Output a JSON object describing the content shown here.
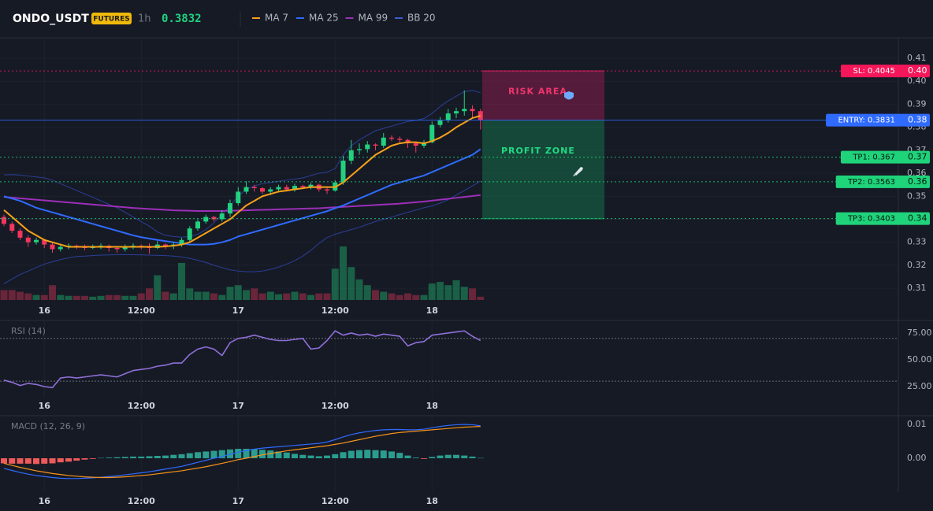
{
  "header": {
    "symbol": "ONDO_USDT",
    "badge": "FUTURES",
    "interval": "1h",
    "price": 0.3832
  },
  "chart_data": [
    {
      "type": "candlestick",
      "up_color": "#22d17f",
      "down_color": "#f2365e",
      "grid": true,
      "ylim": [
        0.3049,
        0.4189
      ],
      "yticks": [
        0.31,
        0.32,
        0.33,
        0.34,
        0.35,
        0.36,
        0.37,
        0.38,
        0.39,
        {
          "value": 0.4,
          "label": "0.40"
        },
        0.41
      ],
      "xticks": [
        {
          "value": 5,
          "label": "16"
        },
        {
          "value": 17,
          "label": "12:00"
        },
        {
          "value": 29,
          "label": "17"
        },
        {
          "value": 41,
          "label": "12:00"
        },
        {
          "value": 53,
          "label": "18"
        }
      ],
      "ohlc": [
        [
          0.341,
          0.342,
          0.337,
          0.338
        ],
        [
          0.338,
          0.339,
          0.334,
          0.335
        ],
        [
          0.335,
          0.336,
          0.331,
          0.332
        ],
        [
          0.332,
          0.333,
          0.328,
          0.33
        ],
        [
          0.33,
          0.332,
          0.329,
          0.331
        ],
        [
          0.331,
          0.3315,
          0.3275,
          0.329
        ],
        [
          0.329,
          0.33,
          0.3255,
          0.327
        ],
        [
          0.327,
          0.329,
          0.326,
          0.328
        ],
        [
          0.328,
          0.3295,
          0.327,
          0.3285
        ],
        [
          0.3285,
          0.329,
          0.327,
          0.328
        ],
        [
          0.328,
          0.329,
          0.3265,
          0.3275
        ],
        [
          0.3275,
          0.329,
          0.327,
          0.328
        ],
        [
          0.328,
          0.3295,
          0.327,
          0.3285
        ],
        [
          0.3285,
          0.329,
          0.326,
          0.3275
        ],
        [
          0.3275,
          0.328,
          0.3255,
          0.327
        ],
        [
          0.327,
          0.329,
          0.326,
          0.328
        ],
        [
          0.328,
          0.3295,
          0.327,
          0.3285
        ],
        [
          0.3285,
          0.329,
          0.327,
          0.328
        ],
        [
          0.328,
          0.3295,
          0.325,
          0.3275
        ],
        [
          0.3275,
          0.3305,
          0.327,
          0.329
        ],
        [
          0.329,
          0.3295,
          0.327,
          0.3285
        ],
        [
          0.3285,
          0.33,
          0.327,
          0.329
        ],
        [
          0.329,
          0.332,
          0.328,
          0.331
        ],
        [
          0.331,
          0.337,
          0.33,
          0.336
        ],
        [
          0.336,
          0.34,
          0.335,
          0.339
        ],
        [
          0.339,
          0.342,
          0.338,
          0.341
        ],
        [
          0.341,
          0.3415,
          0.339,
          0.34
        ],
        [
          0.34,
          0.344,
          0.339,
          0.3425
        ],
        [
          0.3425,
          0.3485,
          0.341,
          0.347
        ],
        [
          0.347,
          0.354,
          0.346,
          0.352
        ],
        [
          0.352,
          0.3565,
          0.351,
          0.354
        ],
        [
          0.354,
          0.355,
          0.352,
          0.3535
        ],
        [
          0.3535,
          0.354,
          0.351,
          0.352
        ],
        [
          0.352,
          0.354,
          0.3505,
          0.353
        ],
        [
          0.353,
          0.355,
          0.352,
          0.354
        ],
        [
          0.354,
          0.355,
          0.352,
          0.353
        ],
        [
          0.353,
          0.3555,
          0.352,
          0.3545
        ],
        [
          0.3545,
          0.355,
          0.353,
          0.354
        ],
        [
          0.354,
          0.356,
          0.353,
          0.355
        ],
        [
          0.355,
          0.3555,
          0.352,
          0.353
        ],
        [
          0.353,
          0.354,
          0.351,
          0.3525
        ],
        [
          0.3525,
          0.357,
          0.352,
          0.356
        ],
        [
          0.356,
          0.3675,
          0.355,
          0.3655
        ],
        [
          0.3655,
          0.3745,
          0.364,
          0.37
        ],
        [
          0.37,
          0.373,
          0.368,
          0.3705
        ],
        [
          0.3705,
          0.374,
          0.369,
          0.3725
        ],
        [
          0.3725,
          0.373,
          0.37,
          0.372
        ],
        [
          0.372,
          0.3775,
          0.371,
          0.3755
        ],
        [
          0.3755,
          0.3765,
          0.374,
          0.375
        ],
        [
          0.375,
          0.376,
          0.373,
          0.3745
        ],
        [
          0.3745,
          0.375,
          0.371,
          0.373
        ],
        [
          0.373,
          0.3735,
          0.369,
          0.372
        ],
        [
          0.372,
          0.3745,
          0.371,
          0.3735
        ],
        [
          0.3735,
          0.3825,
          0.373,
          0.381
        ],
        [
          0.381,
          0.3845,
          0.38,
          0.383
        ],
        [
          0.383,
          0.388,
          0.382,
          0.386
        ],
        [
          0.386,
          0.3885,
          0.384,
          0.387
        ],
        [
          0.387,
          0.396,
          0.385,
          0.388
        ],
        [
          0.388,
          0.3895,
          0.384,
          0.387
        ],
        [
          0.387,
          0.388,
          0.379,
          0.3832
        ]
      ],
      "volume": [
        12,
        12,
        10,
        8,
        6,
        6,
        18,
        6,
        5,
        5,
        5,
        4,
        5,
        6,
        6,
        5,
        5,
        8,
        14,
        30,
        10,
        8,
        45,
        14,
        10,
        10,
        8,
        6,
        16,
        18,
        12,
        14,
        8,
        10,
        7,
        8,
        10,
        8,
        6,
        8,
        8,
        38,
        65,
        40,
        25,
        18,
        12,
        10,
        8,
        6,
        8,
        6,
        6,
        20,
        22,
        18,
        24,
        16,
        14,
        4
      ],
      "series": [
        {
          "name": "MA 7",
          "color": "#f7a11a",
          "values": [
            0.344,
            0.341,
            0.338,
            0.335,
            0.333,
            0.331,
            0.33,
            0.329,
            0.328,
            0.328,
            0.328,
            0.328,
            0.328,
            0.328,
            0.328,
            0.328,
            0.328,
            0.328,
            0.328,
            0.328,
            0.3282,
            0.3285,
            0.329,
            0.33,
            0.332,
            0.334,
            0.336,
            0.338,
            0.34,
            0.343,
            0.346,
            0.348,
            0.35,
            0.351,
            0.352,
            0.3525,
            0.353,
            0.3535,
            0.354,
            0.354,
            0.354,
            0.354,
            0.356,
            0.359,
            0.362,
            0.365,
            0.368,
            0.37,
            0.372,
            0.373,
            0.3735,
            0.3735,
            0.373,
            0.374,
            0.3755,
            0.3775,
            0.38,
            0.382,
            0.384,
            0.385
          ]
        },
        {
          "name": "MA 25",
          "color": "#2f6bff",
          "values": [
            0.35,
            0.349,
            0.348,
            0.3465,
            0.345,
            0.344,
            0.343,
            0.342,
            0.341,
            0.34,
            0.339,
            0.338,
            0.337,
            0.336,
            0.335,
            0.334,
            0.333,
            0.3322,
            0.3316,
            0.331,
            0.3305,
            0.33,
            0.3295,
            0.329,
            0.329,
            0.329,
            0.3293,
            0.33,
            0.331,
            0.3325,
            0.3335,
            0.3345,
            0.3355,
            0.3365,
            0.3375,
            0.3385,
            0.3395,
            0.3405,
            0.3415,
            0.3425,
            0.3435,
            0.3448,
            0.346,
            0.3475,
            0.349,
            0.3505,
            0.352,
            0.3535,
            0.355,
            0.356,
            0.357,
            0.358,
            0.359,
            0.3605,
            0.362,
            0.3635,
            0.365,
            0.3665,
            0.368,
            0.3705
          ]
        },
        {
          "name": "MA 99",
          "color": "#9c2fb8",
          "values": [
            0.3497,
            0.3494,
            0.3491,
            0.3488,
            0.3485,
            0.3482,
            0.3479,
            0.3476,
            0.3473,
            0.347,
            0.3467,
            0.3464,
            0.3461,
            0.3458,
            0.3455,
            0.3452,
            0.3449,
            0.3447,
            0.3445,
            0.3443,
            0.3441,
            0.3439,
            0.3438,
            0.3437,
            0.3436,
            0.3436,
            0.3436,
            0.3436,
            0.3437,
            0.3438,
            0.3439,
            0.344,
            0.3441,
            0.3442,
            0.3443,
            0.3444,
            0.3445,
            0.3446,
            0.3447,
            0.3448,
            0.345,
            0.3452,
            0.3454,
            0.3456,
            0.3458,
            0.346,
            0.3462,
            0.3464,
            0.3466,
            0.3468,
            0.3471,
            0.3474,
            0.3477,
            0.3481,
            0.3485,
            0.3489,
            0.3493,
            0.3497,
            0.3501,
            0.3505
          ]
        },
        {
          "name": "BB 20",
          "color": "#2b3f96",
          "upper": [
            0.3593,
            0.3594,
            0.3592,
            0.3588,
            0.3584,
            0.358,
            0.357,
            0.3555,
            0.354,
            0.3525,
            0.351,
            0.3495,
            0.348,
            0.3465,
            0.345,
            0.343,
            0.341,
            0.339,
            0.337,
            0.3345,
            0.333,
            0.3325,
            0.3322,
            0.3325,
            0.3335,
            0.3355,
            0.3385,
            0.342,
            0.346,
            0.35,
            0.353,
            0.3545,
            0.3555,
            0.356,
            0.3565,
            0.357,
            0.3575,
            0.358,
            0.359,
            0.36,
            0.3605,
            0.362,
            0.368,
            0.372,
            0.3745,
            0.3765,
            0.3785,
            0.3795,
            0.3805,
            0.3815,
            0.3825,
            0.383,
            0.3838,
            0.386,
            0.389,
            0.3915,
            0.3935,
            0.3955,
            0.396,
            0.395
          ],
          "lower": [
            0.312,
            0.314,
            0.316,
            0.3175,
            0.319,
            0.3205,
            0.3215,
            0.3225,
            0.3232,
            0.3238,
            0.324,
            0.3242,
            0.3244,
            0.3245,
            0.3246,
            0.3246,
            0.3246,
            0.3245,
            0.3244,
            0.3243,
            0.3242,
            0.324,
            0.3236,
            0.323,
            0.3222,
            0.3212,
            0.32,
            0.319,
            0.318,
            0.3175,
            0.3172,
            0.3172,
            0.3175,
            0.3182,
            0.3192,
            0.3205,
            0.322,
            0.324,
            0.3265,
            0.3295,
            0.332,
            0.3335,
            0.3345,
            0.3355,
            0.3365,
            0.3378,
            0.339,
            0.34,
            0.341,
            0.342,
            0.343,
            0.344,
            0.345,
            0.3458,
            0.347,
            0.3485,
            0.3505,
            0.3525,
            0.3545,
            0.3566
          ]
        }
      ],
      "price_lines": [
        {
          "label": "SL: 0.4045",
          "value": 0.4045,
          "axis_label": "0.40",
          "color": "#f5175a",
          "text_color": "#ffffff",
          "style": "dotted"
        },
        {
          "label": "ENTRY: 0.3831",
          "value": 0.3831,
          "axis_label": "0.38",
          "color": "#2f6bff",
          "text_color": "#ffffff",
          "style": "solid"
        },
        {
          "label": "TP1: 0.367",
          "value": 0.367,
          "axis_label": "0.37",
          "color": "#1fd37a",
          "text_color": "#07150e",
          "style": "dotted"
        },
        {
          "label": "TP2: 0.3563",
          "value": 0.3563,
          "axis_label": "0.36",
          "color": "#1fd37a",
          "text_color": "#07150e",
          "style": "dotted"
        },
        {
          "label": "TP3: 0.3403",
          "value": 0.3403,
          "axis_label": "0.34",
          "color": "#1fd37a",
          "text_color": "#07150e",
          "style": "dotted"
        }
      ],
      "zones": [
        {
          "label": "RISK AREA",
          "color": "#a01f55",
          "text_color": "#f0346f"
        },
        {
          "label": "PROFIT ZONE",
          "color": "#13804f",
          "text_color": "#22d985"
        }
      ]
    },
    {
      "type": "line",
      "title": "RSI (14)",
      "color": "#8f6fd8",
      "ylim": [
        14.7,
        86
      ],
      "yticks": [
        {
          "value": 25,
          "label": "25.00"
        },
        {
          "value": 50,
          "label": "50.00"
        },
        {
          "value": 75,
          "label": "75.00"
        }
      ],
      "levels": [
        70,
        30
      ],
      "values": [
        31,
        29,
        26,
        28,
        27,
        25,
        24,
        33,
        34,
        33,
        34,
        35,
        36,
        35,
        34,
        37,
        40,
        41,
        42,
        44,
        45,
        47,
        47,
        55,
        60,
        62,
        60,
        54,
        66,
        70,
        71,
        73,
        71,
        69,
        68,
        68,
        69,
        70,
        60,
        61,
        68,
        77,
        73,
        75,
        73,
        74,
        72,
        74,
        73,
        72,
        63,
        66,
        67,
        73,
        74,
        75,
        76,
        77,
        72,
        68
      ]
    },
    {
      "type": "macd",
      "title": "MACD (12, 26, 9)",
      "ylim": [
        -0.01,
        0.0121
      ],
      "yticks": [
        {
          "value": 0,
          "label": "0.00"
        },
        0.01
      ],
      "line": {
        "color": "#2f6bff",
        "values": [
          -0.003,
          -0.0036,
          -0.0042,
          -0.0047,
          -0.0051,
          -0.0054,
          -0.0057,
          -0.0059,
          -0.006,
          -0.006,
          -0.0059,
          -0.0058,
          -0.0056,
          -0.0054,
          -0.0052,
          -0.0049,
          -0.0046,
          -0.0043,
          -0.004,
          -0.0036,
          -0.0032,
          -0.0028,
          -0.0024,
          -0.0018,
          -0.0012,
          -0.0006,
          0.0,
          0.0005,
          0.0012,
          0.0018,
          0.0023,
          0.0027,
          0.003,
          0.0032,
          0.0034,
          0.0036,
          0.0038,
          0.004,
          0.0042,
          0.0044,
          0.0048,
          0.0055,
          0.0063,
          0.007,
          0.0075,
          0.0079,
          0.0082,
          0.0084,
          0.0085,
          0.0085,
          0.0084,
          0.0084,
          0.0086,
          0.009,
          0.0094,
          0.0097,
          0.0099,
          0.01,
          0.0099,
          0.0096
        ]
      },
      "signal": {
        "color": "#f7931a",
        "values": [
          -0.0015,
          -0.0021,
          -0.0027,
          -0.0032,
          -0.0037,
          -0.0041,
          -0.0045,
          -0.0048,
          -0.0051,
          -0.0053,
          -0.0055,
          -0.0056,
          -0.0057,
          -0.0057,
          -0.0056,
          -0.0055,
          -0.0053,
          -0.0051,
          -0.0049,
          -0.0046,
          -0.0043,
          -0.004,
          -0.0037,
          -0.0033,
          -0.0029,
          -0.0025,
          -0.002,
          -0.0015,
          -0.001,
          -0.0004,
          0.0,
          0.0005,
          0.001,
          0.0014,
          0.0018,
          0.0022,
          0.0025,
          0.0028,
          0.0031,
          0.0034,
          0.0037,
          0.0041,
          0.0045,
          0.005,
          0.0055,
          0.006,
          0.0065,
          0.0069,
          0.0073,
          0.0076,
          0.0078,
          0.008,
          0.0082,
          0.0084,
          0.0086,
          0.0088,
          0.009,
          0.0092,
          0.0093,
          0.0094
        ]
      },
      "histogram": {
        "up_color": "#2a9d8f",
        "down_color": "#ef5b5b",
        "values": [
          -0.0015,
          -0.0016,
          -0.0016,
          -0.0016,
          -0.0017,
          -0.0016,
          -0.0015,
          -0.0012,
          -0.001,
          -0.0007,
          -0.0004,
          -0.0002,
          0.0001,
          0.0002,
          0.0003,
          0.0004,
          0.0005,
          0.0005,
          0.0006,
          0.0007,
          0.0008,
          0.001,
          0.0012,
          0.0015,
          0.0018,
          0.002,
          0.0022,
          0.0024,
          0.0026,
          0.0028,
          0.0028,
          0.0027,
          0.0025,
          0.0023,
          0.002,
          0.0017,
          0.0013,
          0.001,
          0.0008,
          0.0006,
          0.0008,
          0.0012,
          0.0018,
          0.0022,
          0.0024,
          0.0025,
          0.0024,
          0.0023,
          0.002,
          0.0016,
          0.0008,
          0.0002,
          -0.0002,
          0.0004,
          0.0008,
          0.001,
          0.001,
          0.0008,
          0.0005,
          0.0001
        ]
      }
    }
  ]
}
